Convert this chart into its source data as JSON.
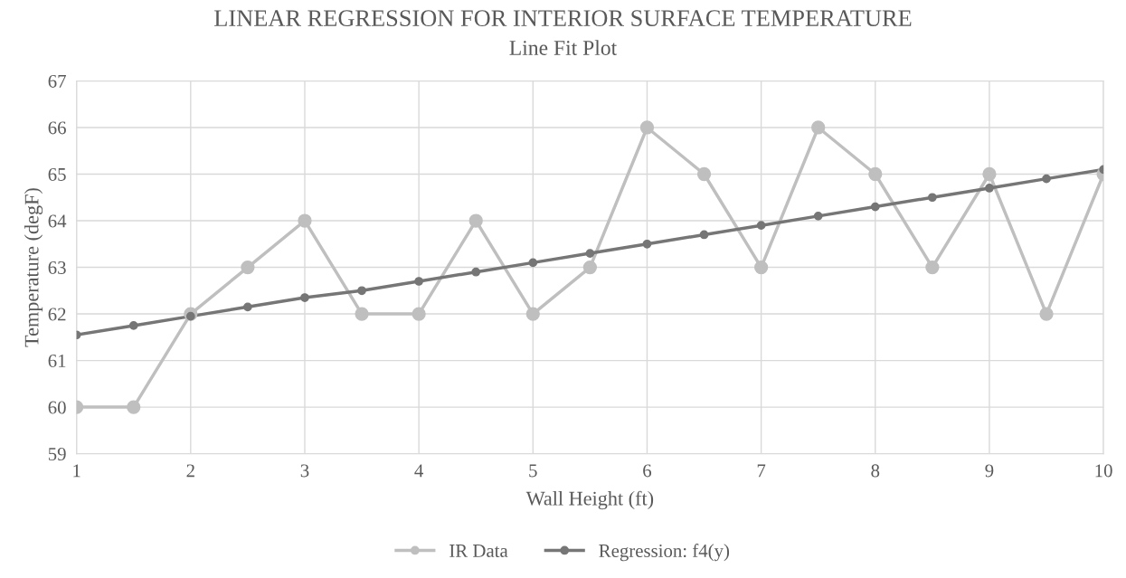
{
  "chart_data": {
    "type": "line",
    "title": "LINEAR REGRESSION FOR INTERIOR SURFACE TEMPERATURE",
    "subtitle": "Line Fit Plot",
    "xlabel": "Wall Height (ft)",
    "ylabel": "Temperature (degF)",
    "x": [
      1,
      1.5,
      2,
      2.5,
      3,
      3.5,
      4,
      4.5,
      5,
      5.5,
      6,
      6.5,
      7,
      7.5,
      8,
      8.5,
      9,
      9.5,
      10
    ],
    "series": [
      {
        "name": "IR Data",
        "color": "#bfbfbf",
        "values": [
          60,
          60,
          62,
          63,
          64,
          62,
          62,
          64,
          62,
          63,
          66,
          65,
          63,
          66,
          65,
          63,
          65,
          62,
          65
        ]
      },
      {
        "name": "Regression: f4(y)",
        "color": "#767676",
        "values": [
          61.55,
          61.75,
          61.95,
          62.15,
          62.35,
          62.5,
          62.7,
          62.9,
          63.1,
          63.3,
          63.5,
          63.7,
          63.9,
          64.1,
          64.3,
          64.5,
          64.7,
          64.9,
          65.1
        ]
      }
    ],
    "xlim": [
      1,
      10
    ],
    "xticks": [
      1,
      2,
      3,
      4,
      5,
      6,
      7,
      8,
      9,
      10
    ],
    "ylim": [
      59,
      67
    ],
    "yticks": [
      59,
      60,
      61,
      62,
      63,
      64,
      65,
      66,
      67
    ],
    "grid": true,
    "legend": "bottom",
    "marker": "circle",
    "line_style": "solid"
  }
}
